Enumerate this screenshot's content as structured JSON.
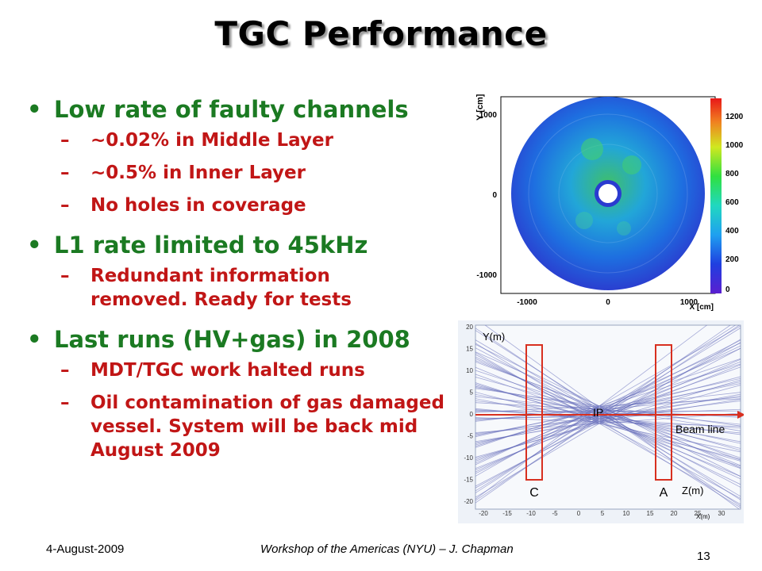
{
  "slide": {
    "title": "TGC Performance",
    "bullets": [
      {
        "text": "Low rate of faulty channels",
        "sub": [
          "~0.02% in Middle Layer",
          "~0.5% in Inner Layer",
          "No holes in coverage"
        ]
      },
      {
        "text": "L1 rate limited to 45kHz",
        "sub": [
          "Redundant information removed. Ready for tests"
        ]
      },
      {
        "text": "Last runs (HV+gas) in 2008",
        "sub": [
          "MDT/TGC work halted runs",
          "Oil contamination of gas damaged vessel. System will be back mid August 2009"
        ]
      }
    ],
    "footer": {
      "date": "4-August-2009",
      "title": "Workshop of the Americas (NYU) – J. Chapman",
      "page": "13"
    }
  },
  "hitmap": {
    "y_axis_label": "Y [cm]",
    "x_axis_label": "X [cm]",
    "x_ticks": [
      "-1000",
      "0",
      "1000"
    ],
    "y_ticks": [
      "1000",
      "0",
      "-1000"
    ],
    "colorbar_ticks": [
      "1200",
      "1000",
      "800",
      "600",
      "400",
      "200",
      "0"
    ]
  },
  "trajectory": {
    "y_axis_label": "Y(m)",
    "x_axis_label": "Z(m)",
    "x_unit_label": "X(m)",
    "ip_label": "IP",
    "beam_label": "Beam line",
    "side_c_label": "C",
    "side_a_label": "A",
    "x_ticks": [
      "-20",
      "-15",
      "-10",
      "-5",
      "0",
      "5",
      "10",
      "15",
      "20",
      "25",
      "30"
    ],
    "y_ticks": [
      "20",
      "15",
      "10",
      "5",
      "0",
      "-5",
      "-10",
      "-15",
      "-20"
    ]
  }
}
